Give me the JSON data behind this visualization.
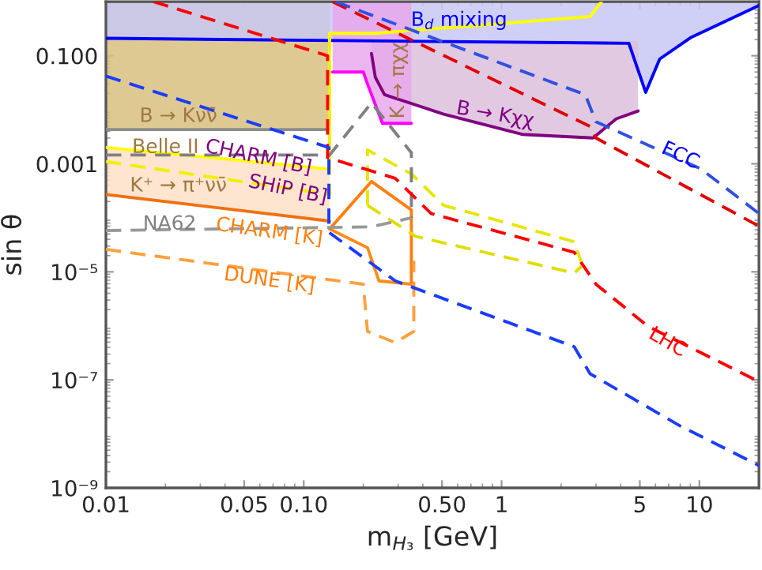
{
  "chart_data": {
    "type": "line",
    "xlabel": "m$_{H₃}$ [GeV]",
    "ylabel": "sin θ",
    "log": "xy",
    "grid": false,
    "xlim": [
      0.01,
      20
    ],
    "ylim": [
      1e-09,
      1
    ],
    "xticks": [
      0.01,
      0.05,
      {
        "value": 0.1,
        "label": "0.10"
      },
      {
        "value": 0.5,
        "label": "0.50"
      },
      1,
      5,
      10
    ],
    "yticks": [
      {
        "value": 1e-09,
        "label": "10⁻⁹"
      },
      {
        "value": 1e-07,
        "label": "10⁻⁷"
      },
      {
        "value": 1e-05,
        "label": "10⁻⁵"
      },
      {
        "value": 0.001,
        "label": "0.001"
      },
      {
        "value": 0.1,
        "label": "0.100"
      }
    ],
    "series": [
      {
        "color": "#8c8c8c",
        "line_style": "solid",
        "x": [
          0.01,
          0.135
        ],
        "values": [
          0.0043,
          0.0043
        ],
        "lower": [
          0.0043,
          0.0043
        ],
        "upper": [
          1,
          1
        ]
      },
      {
        "color": "#0000ff",
        "line_style": "solid",
        "x": [
          0.01,
          4.4,
          5.35,
          6.3,
          9.1,
          20
        ],
        "values": [
          0.21,
          0.17,
          0.021,
          0.087,
          0.22,
          0.85
        ],
        "lower": [
          0.21,
          0.17,
          0.021,
          0.087,
          0.22,
          0.85
        ],
        "upper": [
          1,
          1,
          1,
          1,
          1,
          1
        ]
      },
      {
        "color": "#800080",
        "line_style": "solid",
        "x": [
          0.22,
          0.23,
          0.256,
          0.51,
          1.27,
          2.9,
          3.8,
          4.9
        ],
        "values": [
          0.11,
          0.04,
          0.019,
          0.0083,
          0.0035,
          0.003,
          0.0068,
          0.0095
        ],
        "lower": [
          0.11,
          0.04,
          0.019,
          0.0083,
          0.0035,
          0.003,
          0.0068,
          0.0095
        ],
        "upper": [
          0.19,
          0.19,
          0.19,
          0.19,
          0.19,
          0.19,
          0.19,
          0.19
        ]
      },
      {
        "color": "#ff00ff",
        "line_style": "solid",
        "x": [
          0.14,
          0.2,
          0.21,
          0.25,
          0.35
        ],
        "values": [
          0.05,
          0.05,
          0.03,
          0.0056,
          0.0056
        ],
        "lower": [
          0.05,
          0.05,
          0.03,
          0.0056,
          0.0056
        ],
        "upper": [
          1,
          1,
          1,
          1,
          1
        ]
      },
      {
        "color": "#f07010",
        "line_style": "solid",
        "x": [
          0.01,
          0.135
        ],
        "values": [
          0.00027,
          8.7e-05
        ],
        "lower": [
          0.00027,
          8.7e-05
        ],
        "upper": [
          0.002,
          0.0008
        ]
      },
      {
        "color": "#ff7f0e",
        "line_style": "solid",
        "x": [
          0.135,
          0.22,
          0.35,
          0.35
        ],
        "values": [
          6.2e-05,
          0.00047,
          0.00014,
          5.9e-06
        ]
      },
      {
        "color": "#ff8c1a",
        "line_style": "solid",
        "x": [
          0.135,
          0.21,
          0.24,
          0.35
        ],
        "values": [
          6.2e-05,
          2.8e-05,
          6.8e-06,
          5.9e-06
        ]
      },
      {
        "color": "#ffff00",
        "line_style": "solid",
        "x": [
          0.01,
          0.135,
          0.135,
          0.23,
          2.8,
          3.2
        ],
        "values": [
          0.002,
          0.0008,
          0.26,
          0.26,
          0.53,
          1
        ]
      },
      {
        "color": "#f0f000",
        "line_style": "dashed",
        "x": [
          0.01,
          0.135,
          0.135
        ],
        "values": [
          0.0011,
          0.00027,
          0.26
        ]
      },
      {
        "color": "#e6e600",
        "line_style": "dashed",
        "x": [
          0.21,
          0.21,
          0.35,
          0.51,
          2.33,
          2.56
        ],
        "values": [
          0.00017,
          0.0018,
          0.00065,
          0.00017,
          3.6e-05,
          1.3e-05
        ]
      },
      {
        "color": "#dede00",
        "line_style": "dashed",
        "x": [
          0.21,
          0.37,
          2.33,
          2.56
        ],
        "values": [
          0.00017,
          4.5e-05,
          9.5e-06,
          1.3e-05
        ]
      },
      {
        "color": "#808080",
        "line_style": "dashed",
        "x": [
          0.01,
          0.135,
          0.22,
          0.35,
          0.35
        ],
        "values": [
          0.00145,
          0.00145,
          0.0134,
          0.0016,
          0.0001
        ]
      },
      {
        "color": "#999999",
        "line_style": "dashed",
        "x": [
          0.01,
          0.22,
          0.35
        ],
        "values": [
          5.8e-05,
          6.8e-05,
          0.0001
        ]
      },
      {
        "color": "#ffa040",
        "line_style": "dashed",
        "x": [
          0.01,
          0.2,
          0.21,
          0.29,
          0.36,
          0.36
        ],
        "values": [
          2.6e-05,
          5.9e-06,
          7.9e-07,
          4.9e-07,
          7.9e-07,
          1.6e-05
        ]
      },
      {
        "color": "#ff0000",
        "line_style": "dashed",
        "x": [
          0.0174,
          0.132,
          0.132,
          0.29,
          0.44,
          2.33,
          3.0,
          5.5,
          20
        ],
        "values": [
          1,
          0.1,
          0.0013,
          0.00054,
          0.00012,
          2.3e-05,
          5.9e-06,
          9.8e-07,
          9.3e-08
        ]
      },
      {
        "color": "#e00000",
        "line_style": "dashed",
        "x": [
          0.14,
          2.8,
          3.0,
          20
        ],
        "values": [
          1,
          0.0049,
          0.003,
          7e-05
        ]
      },
      {
        "color": "#1a3cff",
        "line_style": "dashed",
        "x": [
          0.01,
          0.134,
          0.134,
          0.29,
          2.33,
          2.8,
          8.0,
          20
        ],
        "values": [
          0.042,
          0.002,
          5.4e-05,
          6.8e-06,
          4.1e-07,
          1.3e-07,
          1.4e-08,
          2.6e-09
        ]
      },
      {
        "color": "#3050e0",
        "line_style": "dashed",
        "x": [
          0.145,
          2.65,
          3.0,
          10.2,
          20
        ],
        "values": [
          1,
          0.019,
          0.006,
          0.0008,
          0.00012
        ]
      }
    ],
    "annotations": [
      {
        "text": "B$_{d}$ mixing",
        "x": 0.61,
        "y": 0.45
      },
      "B → Kχχ",
      "K → πχχ",
      {
        "text": "FCC",
        "x": 8.0,
        "y": 0.0014
      },
      {
        "text": "LHC",
        "x": 6.9,
        "y": 4.9e-07
      },
      "B → Kνν̄",
      {
        "text": "Belle II",
        "x": 0.02,
        "y": 0.002
      },
      {
        "text": "CHARM [B]",
        "x": 0.059,
        "y": 0.0013
      },
      "K⁺ → π⁺νν̄",
      {
        "text": "SHiP [B]",
        "x": 0.083,
        "y": 0.00033
      },
      {
        "text": "NA62",
        "x": 0.021,
        "y": 7.6e-05
      },
      {
        "text": "CHARM [K]",
        "x": 0.067,
        "y": 5.4e-05
      },
      {
        "text": "DUNE [K]",
        "x": 0.067,
        "y": 6.8e-06
      }
    ]
  }
}
